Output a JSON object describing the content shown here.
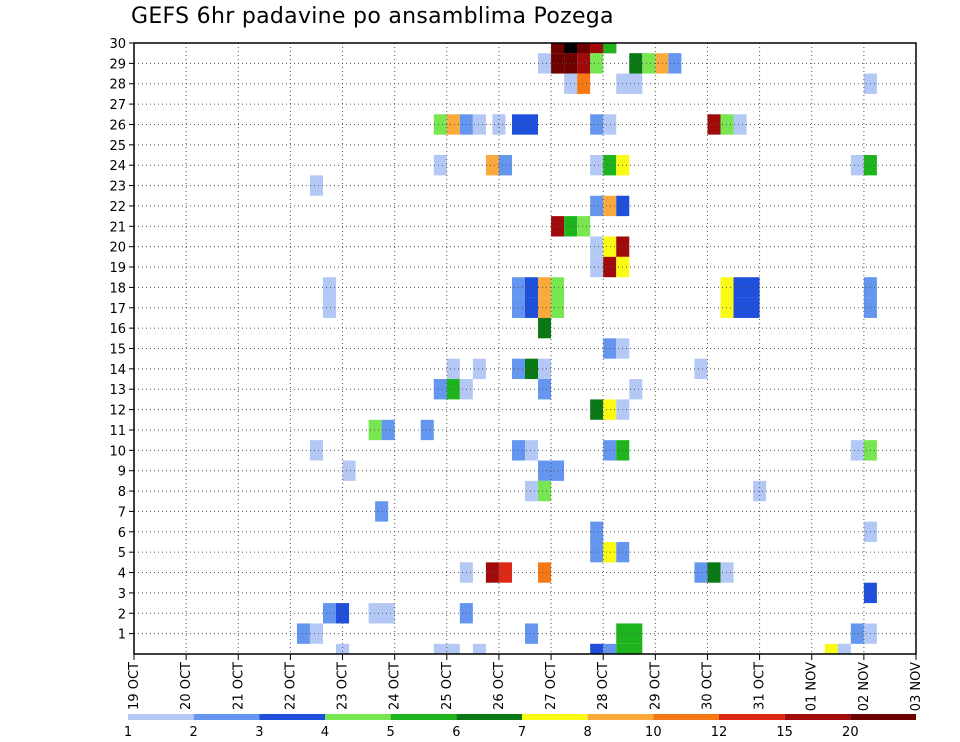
{
  "chart_data": {
    "type": "heatmap",
    "title": "GEFS 6hr padavine po ansamblima Pozega",
    "x_tick_labels": [
      "19 OCT",
      "20 OCT",
      "21 OCT",
      "22 OCT",
      "23 OCT",
      "24 OCT",
      "25 OCT",
      "26 OCT",
      "27 OCT",
      "28 OCT",
      "29 OCT",
      "30 OCT",
      "31 OCT",
      "01 NOV",
      "02 NOV",
      "03 NOV"
    ],
    "y_tick_labels": [
      "1",
      "2",
      "3",
      "4",
      "5",
      "6",
      "7",
      "8",
      "9",
      "10",
      "11",
      "12",
      "13",
      "14",
      "15",
      "16",
      "17",
      "18",
      "19",
      "20",
      "21",
      "22",
      "23",
      "24",
      "25",
      "26",
      "27",
      "28",
      "29",
      "30"
    ],
    "ylim": [
      0,
      30
    ],
    "grid": true,
    "legend_placement": "bottom",
    "legend": {
      "labels": [
        "1",
        "2",
        "3",
        "4",
        "5",
        "6",
        "7",
        "8",
        "10",
        "12",
        "15",
        "20"
      ],
      "colors": [
        "#b4c8f5",
        "#6496f0",
        "#1e50dc",
        "#78e650",
        "#1eb41e",
        "#0a7814",
        "#fafa14",
        "#faaa3c",
        "#f57814",
        "#dc2814",
        "#a00a0a",
        "#6e0000"
      ]
    },
    "cells": [
      [
        30,
        27.0,
        1,
        7
      ],
      [
        30,
        27.0,
        2,
        8
      ],
      [
        30,
        27.0,
        3,
        11
      ],
      [
        30,
        27.25,
        1,
        9
      ],
      [
        30,
        27.25,
        2,
        12
      ],
      [
        30,
        27.5,
        1,
        10
      ],
      [
        30,
        27.5,
        2,
        11
      ],
      [
        30,
        27.75,
        1,
        8
      ],
      [
        30,
        27.75,
        2,
        10
      ],
      [
        30,
        28.0,
        1,
        4
      ],
      [
        29,
        26.75,
        1,
        0
      ],
      [
        29,
        27.0,
        1,
        11
      ],
      [
        29,
        27.25,
        1,
        11
      ],
      [
        29,
        27.5,
        1,
        10
      ],
      [
        29,
        27.75,
        1,
        3
      ],
      [
        29,
        28.5,
        1,
        5
      ],
      [
        29,
        28.75,
        1,
        3
      ],
      [
        29,
        29.0,
        1,
        7
      ],
      [
        29,
        29.25,
        1,
        1
      ],
      [
        28,
        27.25,
        1,
        0
      ],
      [
        28,
        27.5,
        1,
        8
      ],
      [
        28,
        28.25,
        2,
        0
      ],
      [
        28,
        33.0,
        1,
        0
      ],
      [
        26,
        24.75,
        1,
        3
      ],
      [
        26,
        25.0,
        1,
        7
      ],
      [
        26,
        25.25,
        1,
        1
      ],
      [
        26,
        25.5,
        1,
        0
      ],
      [
        26,
        25.875,
        1,
        0
      ],
      [
        26,
        26.25,
        2,
        2
      ],
      [
        26,
        27.75,
        1,
        1
      ],
      [
        26,
        28.0,
        1,
        0
      ],
      [
        26,
        30.0,
        1,
        10
      ],
      [
        26,
        30.25,
        1,
        3
      ],
      [
        26,
        30.5,
        1,
        0
      ],
      [
        24,
        24.75,
        1,
        0
      ],
      [
        24,
        25.75,
        1,
        7
      ],
      [
        24,
        26.0,
        1,
        1
      ],
      [
        24,
        27.75,
        1,
        0
      ],
      [
        24,
        28.0,
        1,
        4
      ],
      [
        24,
        28.25,
        1,
        6
      ],
      [
        24,
        32.75,
        1,
        0
      ],
      [
        24,
        33.0,
        1,
        4
      ],
      [
        23,
        22.375,
        1,
        0
      ],
      [
        22,
        27.75,
        1,
        1
      ],
      [
        22,
        28.0,
        1,
        7
      ],
      [
        22,
        28.25,
        1,
        2
      ],
      [
        21,
        27.0,
        1,
        10
      ],
      [
        21,
        27.25,
        1,
        4
      ],
      [
        21,
        27.5,
        1,
        3
      ],
      [
        20,
        27.75,
        1,
        0
      ],
      [
        20,
        28.0,
        1,
        6
      ],
      [
        20,
        28.25,
        1,
        10
      ],
      [
        19,
        27.75,
        1,
        0
      ],
      [
        19,
        28.0,
        1,
        10
      ],
      [
        19,
        28.25,
        1,
        6
      ],
      [
        18,
        22.625,
        1,
        0
      ],
      [
        18,
        26.25,
        1,
        1
      ],
      [
        18,
        26.5,
        1,
        2
      ],
      [
        18,
        26.75,
        1,
        7
      ],
      [
        18,
        27.0,
        1,
        3
      ],
      [
        18,
        30.25,
        1,
        6
      ],
      [
        18,
        30.5,
        2,
        2
      ],
      [
        18,
        33.0,
        1,
        1
      ],
      [
        17,
        22.625,
        1,
        0
      ],
      [
        17,
        26.25,
        1,
        1
      ],
      [
        17,
        26.5,
        1,
        2
      ],
      [
        17,
        26.75,
        1,
        7
      ],
      [
        17,
        27.0,
        1,
        3
      ],
      [
        17,
        30.25,
        1,
        6
      ],
      [
        17,
        30.5,
        2,
        2
      ],
      [
        17,
        33.0,
        1,
        1
      ],
      [
        16,
        26.75,
        1,
        5
      ],
      [
        15,
        28.0,
        1,
        1
      ],
      [
        15,
        28.25,
        1,
        0
      ],
      [
        14,
        25.0,
        1,
        0
      ],
      [
        14,
        25.5,
        1,
        0
      ],
      [
        14,
        26.25,
        1,
        1
      ],
      [
        14,
        26.5,
        1,
        5
      ],
      [
        14,
        26.75,
        1,
        0
      ],
      [
        14,
        29.75,
        1,
        0
      ],
      [
        13,
        24.75,
        1,
        1
      ],
      [
        14,
        24.75,
        0,
        0
      ],
      [
        13,
        25.0,
        1,
        4
      ],
      [
        13,
        25.25,
        1,
        0
      ],
      [
        13,
        26.75,
        1,
        1
      ],
      [
        13,
        28.5,
        1,
        0
      ],
      [
        12,
        27.75,
        1,
        5
      ],
      [
        12,
        28.0,
        1,
        6
      ],
      [
        12,
        28.25,
        1,
        0
      ],
      [
        11,
        23.5,
        1,
        3
      ],
      [
        11,
        23.75,
        1,
        1
      ],
      [
        11,
        24.5,
        1,
        1
      ],
      [
        10,
        22.375,
        1,
        0
      ],
      [
        10,
        26.25,
        1,
        1
      ],
      [
        10,
        26.5,
        1,
        0
      ],
      [
        10,
        28.0,
        1,
        1
      ],
      [
        10,
        28.25,
        1,
        4
      ],
      [
        10,
        32.75,
        1,
        0
      ],
      [
        10,
        33.0,
        1,
        3
      ],
      [
        9,
        23.0,
        1,
        0
      ],
      [
        9,
        26.75,
        2,
        1
      ],
      [
        8,
        26.5,
        1,
        0
      ],
      [
        8,
        26.75,
        1,
        3
      ],
      [
        8,
        30.875,
        1,
        0
      ],
      [
        7,
        23.625,
        1,
        1
      ],
      [
        6,
        27.75,
        1,
        1
      ],
      [
        6,
        33.0,
        1,
        0
      ],
      [
        5,
        27.75,
        1,
        1
      ],
      [
        5,
        28.0,
        1,
        6
      ],
      [
        5,
        28.25,
        1,
        1
      ],
      [
        4,
        25.25,
        1,
        0
      ],
      [
        4,
        25.75,
        1,
        10
      ],
      [
        4,
        26.0,
        1,
        9
      ],
      [
        4,
        26.75,
        1,
        8
      ],
      [
        4,
        29.75,
        1,
        1
      ],
      [
        4,
        30.0,
        1,
        5
      ],
      [
        4,
        30.25,
        1,
        0
      ],
      [
        3,
        33.0,
        1,
        2
      ],
      [
        2,
        22.625,
        1,
        1
      ],
      [
        2,
        22.875,
        1,
        2
      ],
      [
        2,
        23.5,
        2,
        0
      ],
      [
        2,
        25.25,
        1,
        1
      ],
      [
        1,
        22.125,
        1,
        1
      ],
      [
        1,
        22.375,
        1,
        0
      ],
      [
        1,
        26.5,
        1,
        1
      ],
      [
        1,
        28.25,
        2,
        4
      ],
      [
        1,
        32.75,
        1,
        1
      ],
      [
        1,
        33.0,
        1,
        0
      ],
      [
        0,
        22.875,
        1,
        0
      ],
      [
        0,
        24.75,
        2,
        0
      ],
      [
        0,
        25.5,
        1,
        0
      ],
      [
        0,
        27.75,
        1,
        2
      ],
      [
        0,
        28.0,
        1,
        1
      ],
      [
        0,
        28.25,
        2,
        4
      ],
      [
        0,
        32.25,
        1,
        6
      ],
      [
        0,
        32.5,
        1,
        0
      ]
    ]
  }
}
